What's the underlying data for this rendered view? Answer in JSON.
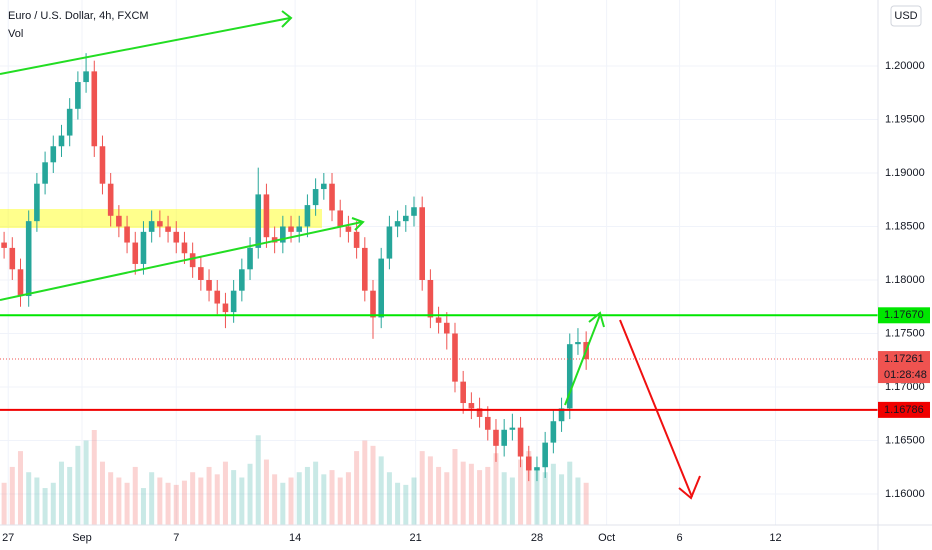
{
  "chart_data": {
    "type": "candlestick",
    "title": "Euro / U.S. Dollar, 4h, FXCM",
    "subtitle": "Vol",
    "currency": "USD",
    "up_color": "#26a69a",
    "down_color": "#ef5350",
    "ylim": [
      1.1571,
      1.20617
    ],
    "yticks": [
      {
        "value": 1.2,
        "label": "1.20000"
      },
      {
        "value": 1.195,
        "label": "1.19500"
      },
      {
        "value": 1.19,
        "label": "1.19000"
      },
      {
        "value": 1.185,
        "label": "1.18500"
      },
      {
        "value": 1.18,
        "label": "1.18000"
      },
      {
        "value": 1.175,
        "label": "1.17500"
      },
      {
        "value": 1.17,
        "label": "1.17000"
      },
      {
        "value": 1.165,
        "label": "1.16500"
      },
      {
        "value": 1.16,
        "label": "1.16000"
      }
    ],
    "xlim": [
      -0.5,
      106.6
    ],
    "xticks": [
      {
        "value": 0.5,
        "label": "27"
      },
      {
        "value": 9.5,
        "label": "Sep"
      },
      {
        "value": 21,
        "label": "7"
      },
      {
        "value": 35.5,
        "label": "14"
      },
      {
        "value": 50.2,
        "label": "21"
      },
      {
        "value": 65,
        "label": "28"
      },
      {
        "value": 73.5,
        "label": "Oct"
      },
      {
        "value": 82.4,
        "label": "6"
      },
      {
        "value": 94.1,
        "label": "12"
      }
    ],
    "grid": true,
    "ohlc": [
      [
        1.1835,
        1.1845,
        1.182,
        1.183
      ],
      [
        1.183,
        1.184,
        1.18,
        1.181
      ],
      [
        1.181,
        1.182,
        1.1775,
        1.1785
      ],
      [
        1.1785,
        1.1865,
        1.1775,
        1.1855
      ],
      [
        1.1855,
        1.19,
        1.1845,
        1.189
      ],
      [
        1.189,
        1.192,
        1.188,
        1.191
      ],
      [
        1.191,
        1.1935,
        1.19,
        1.1925
      ],
      [
        1.1925,
        1.1945,
        1.1915,
        1.1935
      ],
      [
        1.1935,
        1.197,
        1.1925,
        1.196
      ],
      [
        1.196,
        1.1995,
        1.195,
        1.1985
      ],
      [
        1.1985,
        1.2012,
        1.1975,
        1.1995
      ],
      [
        1.1995,
        1.2005,
        1.1915,
        1.1925
      ],
      [
        1.1925,
        1.1935,
        1.188,
        1.189
      ],
      [
        1.189,
        1.19,
        1.185,
        1.186
      ],
      [
        1.186,
        1.187,
        1.184,
        1.185
      ],
      [
        1.185,
        1.186,
        1.1825,
        1.1835
      ],
      [
        1.1835,
        1.1845,
        1.1805,
        1.1815
      ],
      [
        1.1815,
        1.1855,
        1.1805,
        1.1845
      ],
      [
        1.1845,
        1.1865,
        1.1835,
        1.1855
      ],
      [
        1.1855,
        1.1865,
        1.184,
        1.185
      ],
      [
        1.185,
        1.186,
        1.1835,
        1.1845
      ],
      [
        1.1845,
        1.1855,
        1.1825,
        1.1835
      ],
      [
        1.1835,
        1.1845,
        1.1815,
        1.1825
      ],
      [
        1.1825,
        1.1835,
        1.1802,
        1.1812
      ],
      [
        1.1812,
        1.1822,
        1.179,
        1.18
      ],
      [
        1.18,
        1.181,
        1.178,
        1.179
      ],
      [
        1.179,
        1.18,
        1.1768,
        1.1778
      ],
      [
        1.1778,
        1.1788,
        1.1755,
        1.177
      ],
      [
        1.177,
        1.18,
        1.176,
        1.179
      ],
      [
        1.179,
        1.182,
        1.178,
        1.181
      ],
      [
        1.181,
        1.184,
        1.18,
        1.183
      ],
      [
        1.183,
        1.1905,
        1.182,
        1.188
      ],
      [
        1.188,
        1.189,
        1.183,
        1.184
      ],
      [
        1.184,
        1.185,
        1.1825,
        1.1835
      ],
      [
        1.1835,
        1.186,
        1.1825,
        1.185
      ],
      [
        1.185,
        1.186,
        1.1835,
        1.1845
      ],
      [
        1.1845,
        1.186,
        1.1835,
        1.185
      ],
      [
        1.185,
        1.188,
        1.184,
        1.187
      ],
      [
        1.187,
        1.1895,
        1.186,
        1.1885
      ],
      [
        1.1885,
        1.19,
        1.1875,
        1.189
      ],
      [
        1.189,
        1.19,
        1.1855,
        1.1865
      ],
      [
        1.1865,
        1.1875,
        1.184,
        1.185
      ],
      [
        1.185,
        1.186,
        1.1835,
        1.1845
      ],
      [
        1.1845,
        1.1855,
        1.182,
        1.183
      ],
      [
        1.183,
        1.184,
        1.178,
        1.179
      ],
      [
        1.179,
        1.18,
        1.1745,
        1.1765
      ],
      [
        1.1765,
        1.183,
        1.1755,
        1.182
      ],
      [
        1.182,
        1.186,
        1.181,
        1.185
      ],
      [
        1.185,
        1.1865,
        1.184,
        1.1855
      ],
      [
        1.1855,
        1.187,
        1.1845,
        1.186
      ],
      [
        1.186,
        1.1878,
        1.185,
        1.1868
      ],
      [
        1.1868,
        1.1878,
        1.179,
        1.18
      ],
      [
        1.18,
        1.181,
        1.1755,
        1.1765
      ],
      [
        1.1765,
        1.1775,
        1.175,
        1.176
      ],
      [
        1.176,
        1.177,
        1.1735,
        1.175
      ],
      [
        1.175,
        1.176,
        1.1695,
        1.1705
      ],
      [
        1.1705,
        1.1715,
        1.1675,
        1.1685
      ],
      [
        1.1685,
        1.1695,
        1.167,
        1.168
      ],
      [
        1.168,
        1.169,
        1.1662,
        1.1672
      ],
      [
        1.1672,
        1.1682,
        1.165,
        1.166
      ],
      [
        1.166,
        1.167,
        1.163,
        1.1645
      ],
      [
        1.1645,
        1.167,
        1.1635,
        1.166
      ],
      [
        1.166,
        1.1675,
        1.165,
        1.1662
      ],
      [
        1.1662,
        1.1672,
        1.1625,
        1.1635
      ],
      [
        1.1635,
        1.1645,
        1.1612,
        1.1622
      ],
      [
        1.1622,
        1.1635,
        1.1612,
        1.1625
      ],
      [
        1.1625,
        1.1658,
        1.1615,
        1.1648
      ],
      [
        1.1648,
        1.1678,
        1.1638,
        1.1668
      ],
      [
        1.1668,
        1.169,
        1.1658,
        1.168
      ],
      [
        1.168,
        1.175,
        1.167,
        1.174
      ],
      [
        1.174,
        1.1755,
        1.173,
        1.1742
      ],
      [
        1.1742,
        1.1752,
        1.1716,
        1.1726
      ]
    ],
    "volume": [
      40,
      55,
      70,
      50,
      45,
      35,
      40,
      60,
      55,
      75,
      80,
      90,
      60,
      50,
      45,
      40,
      55,
      35,
      50,
      45,
      40,
      38,
      42,
      50,
      45,
      55,
      48,
      60,
      52,
      45,
      58,
      85,
      62,
      48,
      40,
      45,
      50,
      55,
      60,
      48,
      52,
      45,
      50,
      70,
      80,
      75,
      65,
      50,
      40,
      38,
      45,
      70,
      65,
      55,
      50,
      72,
      60,
      58,
      52,
      55,
      68,
      50,
      45,
      62,
      70,
      55,
      50,
      58,
      48,
      60,
      45,
      40
    ],
    "levels": [
      {
        "value": 1.1767,
        "label": "1.17670",
        "color": "#00e600",
        "text_color": "#131722"
      },
      {
        "value": 1.16786,
        "label": "1.16786",
        "color": "#f00000",
        "text_color": "#ffffff"
      }
    ],
    "last_price": {
      "value": 1.17261,
      "label": "1.17261",
      "countdown": "01:28:48",
      "color": "#ef5350"
    }
  }
}
